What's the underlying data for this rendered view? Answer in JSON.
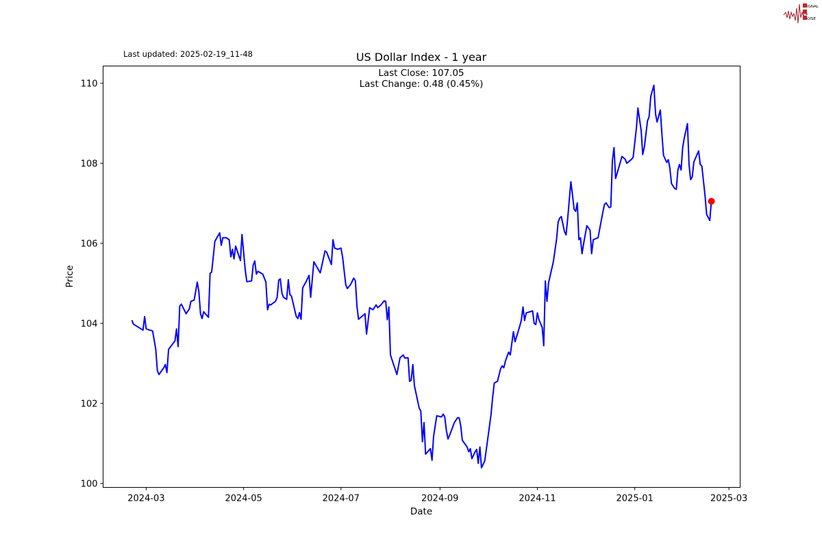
{
  "header": {
    "last_updated": "Last updated: 2025-02-19_11-48",
    "logo_text": "SIGNAL 2 NOISE"
  },
  "chart_data": {
    "type": "line",
    "title": "US Dollar Index - 1 year",
    "annotation": {
      "last_close": "Last Close: 107.05",
      "last_change": "Last Change: 0.48 (0.45%)"
    },
    "xlabel": "Date",
    "ylabel": "Price",
    "xlim": [
      "2024-02-03",
      "2025-03-08"
    ],
    "ylim": [
      99.9,
      110.43
    ],
    "x_ticks": [
      "2024-03",
      "2024-05",
      "2024-07",
      "2024-09",
      "2024-11",
      "2025-01",
      "2025-03"
    ],
    "y_ticks": [
      100,
      102,
      104,
      106,
      108,
      110
    ],
    "grid": false,
    "line_color": "#0000ff",
    "marker_color": "#ff0000",
    "last_point": [
      "2025-02-18",
      107.05
    ],
    "series": [
      {
        "points": [
          [
            "2024-02-21",
            104.08
          ],
          [
            "2024-02-22",
            103.98
          ],
          [
            "2024-02-26",
            103.88
          ],
          [
            "2024-02-28",
            103.83
          ],
          [
            "2024-02-29",
            104.17
          ],
          [
            "2024-03-01",
            103.86
          ],
          [
            "2024-03-05",
            103.81
          ],
          [
            "2024-03-07",
            103.35
          ],
          [
            "2024-03-08",
            102.82
          ],
          [
            "2024-03-09",
            102.72
          ],
          [
            "2024-03-12",
            102.89
          ],
          [
            "2024-03-13",
            102.97
          ],
          [
            "2024-03-14",
            102.77
          ],
          [
            "2024-03-15",
            103.35
          ],
          [
            "2024-03-19",
            103.56
          ],
          [
            "2024-03-20",
            103.86
          ],
          [
            "2024-03-21",
            103.42
          ],
          [
            "2024-03-22",
            104.43
          ],
          [
            "2024-03-23",
            104.48
          ],
          [
            "2024-03-26",
            104.24
          ],
          [
            "2024-03-28",
            104.36
          ],
          [
            "2024-03-29",
            104.55
          ],
          [
            "2024-03-31",
            104.58
          ],
          [
            "2024-04-02",
            105.03
          ],
          [
            "2024-04-03",
            104.8
          ],
          [
            "2024-04-04",
            104.24
          ],
          [
            "2024-04-05",
            104.12
          ],
          [
            "2024-04-06",
            104.29
          ],
          [
            "2024-04-09",
            104.15
          ],
          [
            "2024-04-10",
            105.25
          ],
          [
            "2024-04-11",
            105.28
          ],
          [
            "2024-04-13",
            106.05
          ],
          [
            "2024-04-16",
            106.26
          ],
          [
            "2024-04-17",
            105.95
          ],
          [
            "2024-04-18",
            106.14
          ],
          [
            "2024-04-20",
            106.14
          ],
          [
            "2024-04-22",
            106.09
          ],
          [
            "2024-04-23",
            105.66
          ],
          [
            "2024-04-24",
            105.85
          ],
          [
            "2024-04-25",
            105.61
          ],
          [
            "2024-04-26",
            105.93
          ],
          [
            "2024-04-29",
            105.57
          ],
          [
            "2024-04-30",
            106.22
          ],
          [
            "2024-05-02",
            105.35
          ],
          [
            "2024-05-03",
            105.04
          ],
          [
            "2024-05-06",
            105.06
          ],
          [
            "2024-05-07",
            105.45
          ],
          [
            "2024-05-08",
            105.56
          ],
          [
            "2024-05-09",
            105.23
          ],
          [
            "2024-05-10",
            105.3
          ],
          [
            "2024-05-13",
            105.23
          ],
          [
            "2024-05-15",
            105.03
          ],
          [
            "2024-05-16",
            104.34
          ],
          [
            "2024-05-17",
            104.48
          ],
          [
            "2024-05-18",
            104.46
          ],
          [
            "2024-05-21",
            104.55
          ],
          [
            "2024-05-22",
            104.65
          ],
          [
            "2024-05-23",
            105.08
          ],
          [
            "2024-05-24",
            105.11
          ],
          [
            "2024-05-25",
            104.75
          ],
          [
            "2024-05-26",
            104.65
          ],
          [
            "2024-05-28",
            104.6
          ],
          [
            "2024-05-29",
            105.09
          ],
          [
            "2024-05-30",
            104.72
          ],
          [
            "2024-05-31",
            104.68
          ],
          [
            "2024-06-03",
            104.17
          ],
          [
            "2024-06-04",
            104.12
          ],
          [
            "2024-06-05",
            104.27
          ],
          [
            "2024-06-06",
            104.1
          ],
          [
            "2024-06-07",
            104.89
          ],
          [
            "2024-06-09",
            105.03
          ],
          [
            "2024-06-11",
            105.2
          ],
          [
            "2024-06-12",
            104.65
          ],
          [
            "2024-06-14",
            105.54
          ],
          [
            "2024-06-16",
            105.4
          ],
          [
            "2024-06-18",
            105.26
          ],
          [
            "2024-06-21",
            105.81
          ],
          [
            "2024-06-22",
            105.78
          ],
          [
            "2024-06-25",
            105.47
          ],
          [
            "2024-06-26",
            106.09
          ],
          [
            "2024-06-27",
            105.88
          ],
          [
            "2024-06-29",
            105.85
          ],
          [
            "2024-07-01",
            105.88
          ],
          [
            "2024-07-02",
            105.66
          ],
          [
            "2024-07-04",
            104.96
          ],
          [
            "2024-07-05",
            104.87
          ],
          [
            "2024-07-07",
            104.97
          ],
          [
            "2024-07-09",
            105.13
          ],
          [
            "2024-07-10",
            105.06
          ],
          [
            "2024-07-11",
            104.43
          ],
          [
            "2024-07-12",
            104.1
          ],
          [
            "2024-07-16",
            104.24
          ],
          [
            "2024-07-17",
            103.73
          ],
          [
            "2024-07-19",
            104.39
          ],
          [
            "2024-07-21",
            104.34
          ],
          [
            "2024-07-23",
            104.46
          ],
          [
            "2024-07-24",
            104.39
          ],
          [
            "2024-07-26",
            104.46
          ],
          [
            "2024-07-28",
            104.56
          ],
          [
            "2024-07-29",
            104.55
          ],
          [
            "2024-07-30",
            104.09
          ],
          [
            "2024-07-31",
            104.41
          ],
          [
            "2024-08-01",
            103.21
          ],
          [
            "2024-08-05",
            102.72
          ],
          [
            "2024-08-07",
            103.14
          ],
          [
            "2024-08-09",
            103.21
          ],
          [
            "2024-08-10",
            103.13
          ],
          [
            "2024-08-12",
            103.14
          ],
          [
            "2024-08-13",
            102.55
          ],
          [
            "2024-08-14",
            102.58
          ],
          [
            "2024-08-15",
            102.97
          ],
          [
            "2024-08-16",
            102.44
          ],
          [
            "2024-08-19",
            101.88
          ],
          [
            "2024-08-20",
            101.81
          ],
          [
            "2024-08-21",
            101.04
          ],
          [
            "2024-08-22",
            101.52
          ],
          [
            "2024-08-23",
            100.73
          ],
          [
            "2024-08-26",
            100.87
          ],
          [
            "2024-08-27",
            100.58
          ],
          [
            "2024-08-28",
            101.18
          ],
          [
            "2024-08-30",
            101.69
          ],
          [
            "2024-09-02",
            101.66
          ],
          [
            "2024-09-03",
            101.73
          ],
          [
            "2024-09-04",
            101.66
          ],
          [
            "2024-09-05",
            101.33
          ],
          [
            "2024-09-06",
            101.11
          ],
          [
            "2024-09-07",
            101.2
          ],
          [
            "2024-09-10",
            101.52
          ],
          [
            "2024-09-12",
            101.64
          ],
          [
            "2024-09-13",
            101.64
          ],
          [
            "2024-09-14",
            101.44
          ],
          [
            "2024-09-15",
            101.08
          ],
          [
            "2024-09-18",
            100.91
          ],
          [
            "2024-09-19",
            100.79
          ],
          [
            "2024-09-20",
            100.87
          ],
          [
            "2024-09-21",
            100.62
          ],
          [
            "2024-09-23",
            100.79
          ],
          [
            "2024-09-24",
            100.85
          ],
          [
            "2024-09-25",
            100.5
          ],
          [
            "2024-09-26",
            100.91
          ],
          [
            "2024-09-27",
            100.39
          ],
          [
            "2024-09-29",
            100.56
          ],
          [
            "2024-09-30",
            100.84
          ],
          [
            "2024-10-03",
            101.73
          ],
          [
            "2024-10-04",
            102.15
          ],
          [
            "2024-10-05",
            102.51
          ],
          [
            "2024-10-07",
            102.55
          ],
          [
            "2024-10-09",
            102.87
          ],
          [
            "2024-10-10",
            102.94
          ],
          [
            "2024-10-11",
            102.89
          ],
          [
            "2024-10-12",
            103.06
          ],
          [
            "2024-10-14",
            103.28
          ],
          [
            "2024-10-15",
            103.21
          ],
          [
            "2024-10-17",
            103.79
          ],
          [
            "2024-10-18",
            103.54
          ],
          [
            "2024-10-21",
            103.93
          ],
          [
            "2024-10-22",
            104.09
          ],
          [
            "2024-10-23",
            104.41
          ],
          [
            "2024-10-24",
            104.07
          ],
          [
            "2024-10-25",
            104.26
          ],
          [
            "2024-10-29",
            104.31
          ],
          [
            "2024-10-30",
            104.0
          ],
          [
            "2024-10-31",
            103.97
          ],
          [
            "2024-11-01",
            104.26
          ],
          [
            "2024-11-02",
            104.09
          ],
          [
            "2024-11-04",
            103.9
          ],
          [
            "2024-11-05",
            103.44
          ],
          [
            "2024-11-06",
            105.06
          ],
          [
            "2024-11-07",
            104.55
          ],
          [
            "2024-11-08",
            105.01
          ],
          [
            "2024-11-11",
            105.54
          ],
          [
            "2024-11-13",
            106.1
          ],
          [
            "2024-11-14",
            106.53
          ],
          [
            "2024-11-15",
            106.63
          ],
          [
            "2024-11-16",
            106.67
          ],
          [
            "2024-11-18",
            106.29
          ],
          [
            "2024-11-19",
            106.21
          ],
          [
            "2024-11-20",
            106.63
          ],
          [
            "2024-11-22",
            107.54
          ],
          [
            "2024-11-23",
            107.2
          ],
          [
            "2024-11-24",
            106.85
          ],
          [
            "2024-11-25",
            106.8
          ],
          [
            "2024-11-26",
            107.01
          ],
          [
            "2024-11-27",
            106.09
          ],
          [
            "2024-11-28",
            106.14
          ],
          [
            "2024-11-29",
            105.74
          ],
          [
            "2024-11-30",
            106.0
          ],
          [
            "2024-12-02",
            106.44
          ],
          [
            "2024-12-04",
            106.33
          ],
          [
            "2024-12-05",
            105.74
          ],
          [
            "2024-12-06",
            106.09
          ],
          [
            "2024-12-09",
            106.14
          ],
          [
            "2024-12-12",
            106.77
          ],
          [
            "2024-12-13",
            106.97
          ],
          [
            "2024-12-14",
            107.01
          ],
          [
            "2024-12-16",
            106.89
          ],
          [
            "2024-12-17",
            106.91
          ],
          [
            "2024-12-18",
            108.07
          ],
          [
            "2024-12-19",
            108.39
          ],
          [
            "2024-12-20",
            107.62
          ],
          [
            "2024-12-24",
            108.17
          ],
          [
            "2024-12-26",
            108.1
          ],
          [
            "2024-12-27",
            108.0
          ],
          [
            "2024-12-30",
            108.1
          ],
          [
            "2024-12-31",
            108.15
          ],
          [
            "2025-01-02",
            108.87
          ],
          [
            "2025-01-03",
            109.38
          ],
          [
            "2025-01-05",
            108.82
          ],
          [
            "2025-01-06",
            108.22
          ],
          [
            "2025-01-07",
            108.41
          ],
          [
            "2025-01-09",
            109.06
          ],
          [
            "2025-01-10",
            109.16
          ],
          [
            "2025-01-11",
            109.67
          ],
          [
            "2025-01-13",
            109.95
          ],
          [
            "2025-01-14",
            109.23
          ],
          [
            "2025-01-15",
            109.03
          ],
          [
            "2025-01-17",
            109.33
          ],
          [
            "2025-01-18",
            108.73
          ],
          [
            "2025-01-19",
            108.2
          ],
          [
            "2025-01-21",
            108.02
          ],
          [
            "2025-01-22",
            108.09
          ],
          [
            "2025-01-23",
            107.88
          ],
          [
            "2025-01-24",
            107.49
          ],
          [
            "2025-01-26",
            107.37
          ],
          [
            "2025-01-27",
            107.35
          ],
          [
            "2025-01-28",
            107.83
          ],
          [
            "2025-01-29",
            107.97
          ],
          [
            "2025-01-30",
            107.83
          ],
          [
            "2025-01-31",
            108.39
          ],
          [
            "2025-02-01",
            108.63
          ],
          [
            "2025-02-03",
            108.99
          ],
          [
            "2025-02-04",
            107.97
          ],
          [
            "2025-02-05",
            107.59
          ],
          [
            "2025-02-06",
            107.66
          ],
          [
            "2025-02-07",
            108.03
          ],
          [
            "2025-02-10",
            108.31
          ],
          [
            "2025-02-11",
            107.97
          ],
          [
            "2025-02-12",
            107.93
          ],
          [
            "2025-02-14",
            107.2
          ],
          [
            "2025-02-15",
            106.72
          ],
          [
            "2025-02-17",
            106.57
          ],
          [
            "2025-02-18",
            107.05
          ]
        ]
      }
    ]
  }
}
